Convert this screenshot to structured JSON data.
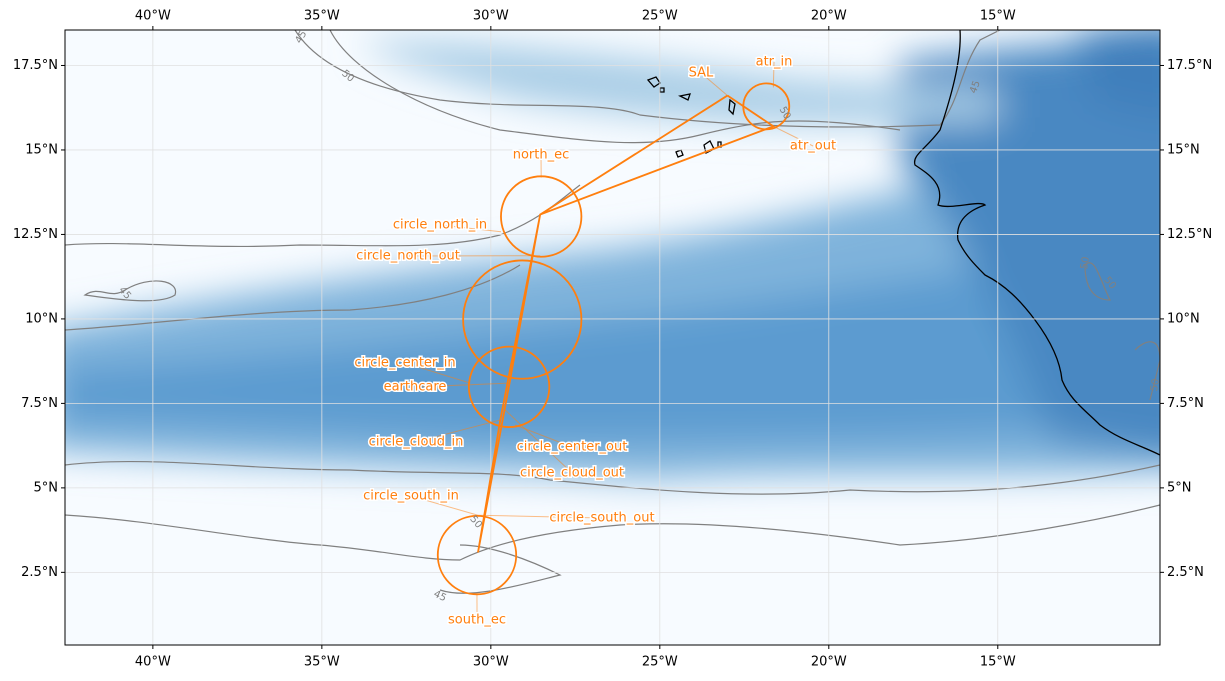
{
  "map": {
    "xlim": [
      -42.6,
      -10.2
    ],
    "ylim": [
      0.35,
      18.55
    ],
    "xticks": [
      {
        "value": -40,
        "label": "40°W"
      },
      {
        "value": -35,
        "label": "35°W"
      },
      {
        "value": -30,
        "label": "30°W"
      },
      {
        "value": -25,
        "label": "25°W"
      },
      {
        "value": -20,
        "label": "20°W"
      },
      {
        "value": -15,
        "label": "15°W"
      }
    ],
    "yticks": [
      {
        "value": 2.5,
        "label": "2.5°N"
      },
      {
        "value": 5,
        "label": "5°N"
      },
      {
        "value": 7.5,
        "label": "7.5°N"
      },
      {
        "value": 10,
        "label": "10°N"
      },
      {
        "value": 12.5,
        "label": "12.5°N"
      },
      {
        "value": 15,
        "label": "15°N"
      },
      {
        "value": 17.5,
        "label": "17.5°N"
      }
    ],
    "grid": true,
    "track_color": "#ff7f0e",
    "track": {
      "lon": [
        -23.0,
        -21.64,
        -28.54,
        -29.43,
        -30.38,
        -29.72,
        -28.54,
        -23.0
      ],
      "lat": [
        16.61,
        15.7,
        13.09,
        8.19,
        3.09,
        7.01,
        13.09,
        16.61
      ]
    },
    "circles": [
      {
        "lon": -21.85,
        "lat": 16.29,
        "radius": 0.68
      },
      {
        "lon": -28.51,
        "lat": 13.03,
        "radius": 1.19
      },
      {
        "lon": -29.07,
        "lat": 9.98,
        "radius": 1.75
      },
      {
        "lon": -29.46,
        "lat": 7.99,
        "radius": 1.19
      },
      {
        "lon": -30.41,
        "lat": 3.01,
        "radius": 1.16
      }
    ],
    "waypoints": [
      {
        "name": "SAL",
        "lon": -23.0,
        "lat": 16.61
      },
      {
        "name": "atr_in",
        "lon": -21.64,
        "lat": 16.85
      },
      {
        "name": "atr_out",
        "lon": -21.64,
        "lat": 15.7
      },
      {
        "name": "north_ec",
        "lon": -28.51,
        "lat": 14.18
      },
      {
        "name": "circle_north_in",
        "lon": -29.7,
        "lat": 12.58
      },
      {
        "name": "circle_north_out",
        "lon": -28.54,
        "lat": 11.87
      },
      {
        "name": "circle_center_in",
        "lon": -30.61,
        "lat": 8.1
      },
      {
        "name": "earthcare",
        "lon": -29.43,
        "lat": 8.1
      },
      {
        "name": "circle_cloud_in",
        "lon": -29.72,
        "lat": 7.01
      },
      {
        "name": "circle_center_out",
        "lon": -29.28,
        "lat": 6.86
      },
      {
        "name": "circle_cloud_out",
        "lon": -29.57,
        "lat": 7.3
      },
      {
        "name": "circle_south_in",
        "lon": -30.38,
        "lat": 4.19
      },
      {
        "name": "circle_south_out",
        "lon": -30.38,
        "lat": 4.19
      },
      {
        "name": "south_ec",
        "lon": -30.41,
        "lat": 1.85
      }
    ],
    "contour_labels": [
      45,
      50,
      45,
      45,
      50,
      50,
      50,
      50,
      50,
      45
    ]
  }
}
